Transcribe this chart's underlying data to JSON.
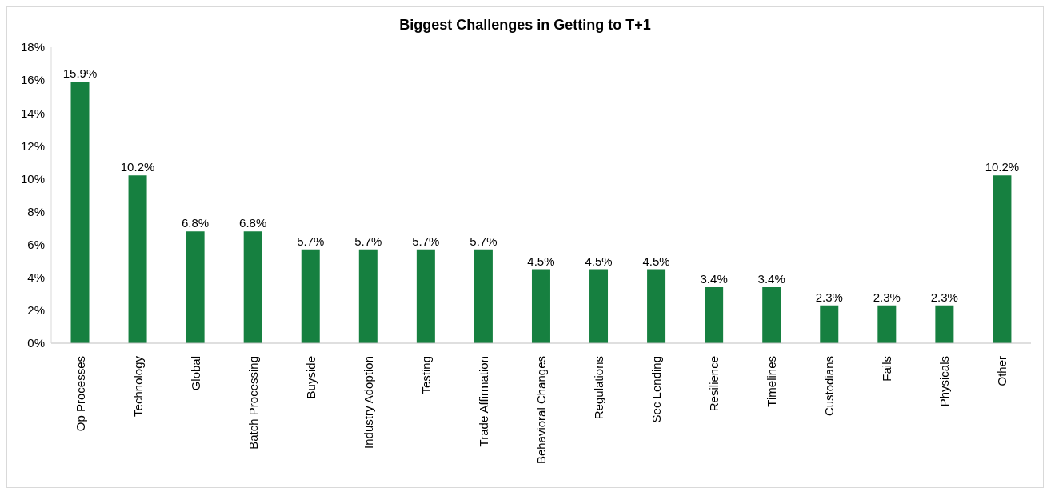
{
  "chart_data": {
    "type": "bar",
    "title": "Biggest Challenges in Getting to T+1",
    "categories": [
      "Op Processes",
      "Technology",
      "Global",
      "Batch Processing",
      "Buyside",
      "Industry Adoption",
      "Testing",
      "Trade Affirmation",
      "Behavioral Changes",
      "Regulations",
      "Sec Lending",
      "Resilience",
      "Timelines",
      "Custodians",
      "Fails",
      "Physicals",
      "Other"
    ],
    "values": [
      15.9,
      10.2,
      6.8,
      6.8,
      5.7,
      5.7,
      5.7,
      5.7,
      4.5,
      4.5,
      4.5,
      3.4,
      3.4,
      2.3,
      2.3,
      2.3,
      10.2
    ],
    "value_labels": [
      "15.9%",
      "10.2%",
      "6.8%",
      "6.8%",
      "5.7%",
      "5.7%",
      "5.7%",
      "5.7%",
      "4.5%",
      "4.5%",
      "4.5%",
      "3.4%",
      "3.4%",
      "2.3%",
      "2.3%",
      "2.3%",
      "10.2%"
    ],
    "color": "#168040",
    "ylim": [
      0,
      18
    ],
    "yticks": [
      {
        "value": 0,
        "label": "0%"
      },
      {
        "value": 2,
        "label": "2%"
      },
      {
        "value": 4,
        "label": "4%"
      },
      {
        "value": 6,
        "label": "6%"
      },
      {
        "value": 8,
        "label": "8%"
      },
      {
        "value": 10,
        "label": "10%"
      },
      {
        "value": 12,
        "label": "12%"
      },
      {
        "value": 14,
        "label": "14%"
      },
      {
        "value": 16,
        "label": "16%"
      },
      {
        "value": 18,
        "label": "18%"
      }
    ],
    "grid": false,
    "legend": false
  }
}
